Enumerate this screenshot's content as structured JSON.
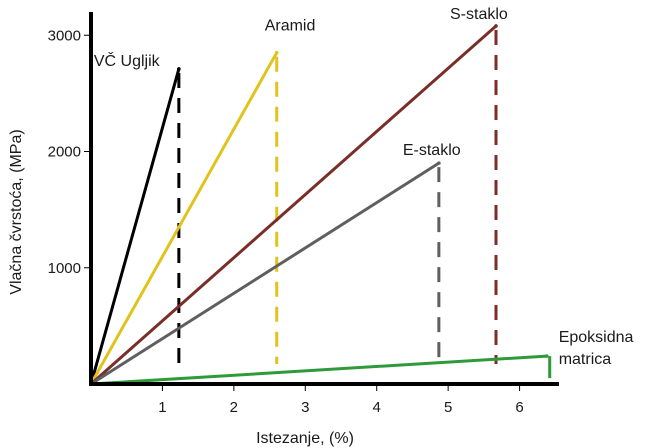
{
  "chart_data": {
    "type": "line",
    "xlabel": "Istezanje, (%)",
    "ylabel": "Vlačna čvrstoća, (MPa)",
    "xlim": [
      0,
      6.65
    ],
    "ylim": [
      0,
      3200
    ],
    "x_ticks": [
      1,
      2,
      3,
      4,
      5,
      6
    ],
    "y_ticks": [
      1000,
      2000,
      3000
    ],
    "grid": false,
    "series": [
      {
        "name": "VČ Ugljik",
        "color": "#000000",
        "dashed_drop": true,
        "points": [
          [
            0,
            0
          ],
          [
            1.23,
            2710
          ]
        ]
      },
      {
        "name": "Aramid",
        "color": "#e2c21c",
        "dashed_drop": true,
        "points": [
          [
            0,
            0
          ],
          [
            2.6,
            2850
          ]
        ]
      },
      {
        "name": "S-staklo",
        "color": "#7a2e2a",
        "dashed_drop": true,
        "points": [
          [
            0,
            0
          ],
          [
            5.67,
            3080
          ]
        ]
      },
      {
        "name": "E-staklo",
        "color": "#5f5f5f",
        "dashed_drop": true,
        "points": [
          [
            0,
            0
          ],
          [
            4.87,
            1900
          ]
        ]
      },
      {
        "name": "Epoksidna matrica",
        "color": "#2f9a3a",
        "dashed_drop": false,
        "points": [
          [
            0,
            0
          ],
          [
            6.38,
            240
          ]
        ]
      }
    ]
  }
}
